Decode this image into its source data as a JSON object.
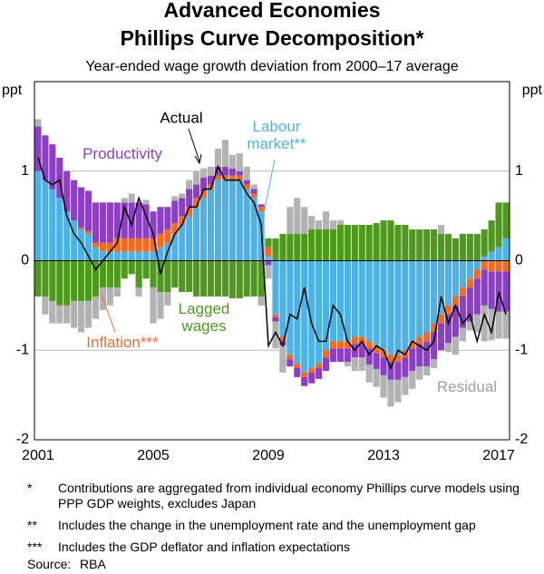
{
  "chart_data": {
    "type": "bar",
    "title": [
      "Advanced Economies",
      "Phillips Curve Decomposition*"
    ],
    "subtitle": "Year-ended wage growth deviation from 2000–17 average",
    "ylabel": "ppt",
    "y2label": "ppt",
    "categories": [
      "2001",
      null,
      null,
      null,
      null,
      null,
      null,
      null,
      null,
      null,
      null,
      null,
      null,
      null,
      null,
      null,
      "2005",
      null,
      null,
      null,
      null,
      null,
      null,
      null,
      null,
      null,
      null,
      null,
      null,
      null,
      null,
      null,
      "2009",
      null,
      null,
      null,
      null,
      null,
      null,
      null,
      null,
      null,
      null,
      null,
      null,
      null,
      null,
      null,
      "2013",
      null,
      null,
      null,
      null,
      null,
      null,
      null,
      null,
      null,
      null,
      null,
      null,
      null,
      null,
      null,
      "2017",
      null
    ],
    "ylim": [
      -2,
      2
    ],
    "yticks": [
      -2,
      -1,
      0,
      1
    ],
    "y2lim": [
      -2,
      2
    ],
    "y2ticks": [
      -2,
      -1,
      0,
      1
    ],
    "grid": true,
    "stacked": true,
    "series": [
      {
        "name": "Labour market**",
        "color": "#4db3e6",
        "values": [
          1.0,
          0.9,
          0.8,
          0.7,
          0.55,
          0.45,
          0.35,
          0.3,
          0.15,
          0.1,
          0.1,
          0.1,
          0.1,
          0.1,
          0.1,
          0.1,
          0.1,
          0.15,
          0.2,
          0.3,
          0.4,
          0.5,
          0.6,
          0.7,
          0.8,
          0.9,
          0.9,
          0.9,
          0.9,
          0.8,
          0.7,
          0.55,
          0.05,
          -0.6,
          -0.85,
          -1.05,
          -1.15,
          -1.25,
          -1.2,
          -1.15,
          -1.0,
          -0.9,
          -0.9,
          -0.9,
          -0.85,
          -0.85,
          -0.9,
          -0.95,
          -1.0,
          -1.05,
          -1.05,
          -1.0,
          -0.9,
          -0.85,
          -0.8,
          -0.7,
          -0.6,
          -0.5,
          -0.4,
          -0.3,
          -0.2,
          -0.1,
          0.05,
          0.1,
          0.15,
          0.25
        ]
      },
      {
        "name": "Inflation***",
        "color": "#f26b21",
        "values": [
          0,
          0,
          0,
          0,
          0,
          0,
          0.02,
          0.03,
          0.05,
          0.1,
          0.1,
          0.15,
          0.15,
          0.15,
          0.15,
          0.15,
          0.15,
          0.15,
          0.15,
          0.12,
          0.1,
          0.1,
          0.1,
          0.08,
          0.05,
          0.05,
          0.05,
          0.05,
          0.05,
          0.05,
          0.05,
          0.05,
          0.1,
          -0.03,
          -0.05,
          -0.05,
          -0.05,
          -0.05,
          -0.05,
          -0.05,
          -0.08,
          -0.08,
          -0.08,
          -0.08,
          -0.08,
          -0.08,
          -0.08,
          -0.08,
          -0.08,
          -0.08,
          -0.08,
          -0.08,
          -0.08,
          -0.08,
          -0.1,
          -0.1,
          -0.1,
          -0.1,
          -0.1,
          -0.1,
          -0.1,
          -0.1,
          -0.1,
          -0.12,
          -0.12,
          -0.12
        ]
      },
      {
        "name": "Productivity",
        "color": "#8c3fc4",
        "values": [
          0.5,
          0.5,
          0.5,
          0.45,
          0.45,
          0.45,
          0.45,
          0.45,
          0.45,
          0.45,
          0.45,
          0.4,
          0.4,
          0.4,
          0.4,
          0.38,
          0.3,
          0.3,
          0.25,
          0.25,
          0.2,
          0.2,
          0.15,
          0.15,
          0.1,
          0.1,
          0.1,
          0.08,
          0.05,
          0.05,
          0.05,
          0.03,
          -0.05,
          -0.05,
          -0.05,
          -0.08,
          -0.1,
          -0.1,
          -0.12,
          -0.12,
          -0.15,
          -0.15,
          -0.15,
          -0.15,
          -0.15,
          -0.15,
          -0.18,
          -0.18,
          -0.2,
          -0.2,
          -0.2,
          -0.22,
          -0.25,
          -0.25,
          -0.28,
          -0.3,
          -0.3,
          -0.32,
          -0.35,
          -0.35,
          -0.38,
          -0.4,
          -0.4,
          -0.42,
          -0.45,
          -0.45
        ]
      },
      {
        "name": "Lagged wages",
        "color": "#4f9a1e",
        "values": [
          -0.4,
          -0.4,
          -0.45,
          -0.5,
          -0.5,
          -0.45,
          -0.45,
          -0.45,
          -0.4,
          -0.3,
          -0.3,
          -0.3,
          -0.2,
          -0.15,
          -0.3,
          -0.2,
          -0.3,
          -0.35,
          -0.35,
          -0.3,
          -0.35,
          -0.35,
          -0.4,
          -0.4,
          -0.4,
          -0.4,
          -0.4,
          -0.42,
          -0.42,
          -0.4,
          -0.4,
          -0.4,
          0.1,
          0.25,
          0.3,
          0.3,
          0.3,
          0.3,
          0.35,
          0.35,
          0.35,
          0.35,
          0.4,
          0.4,
          0.4,
          0.4,
          0.4,
          0.42,
          0.45,
          0.45,
          0.4,
          0.4,
          0.35,
          0.35,
          0.35,
          0.35,
          0.3,
          0.3,
          0.25,
          0.3,
          0.3,
          0.3,
          0.3,
          0.35,
          0.5,
          0.4
        ]
      },
      {
        "name": "Residual",
        "color": "#b3b3b3",
        "values": [
          0.08,
          -0.2,
          -0.25,
          -0.2,
          -0.2,
          -0.3,
          -0.35,
          -0.3,
          -0.25,
          -0.25,
          -0.2,
          -0.1,
          0.05,
          0.1,
          -0.1,
          0.05,
          -0.4,
          -0.3,
          -0.15,
          0.05,
          0.05,
          0.1,
          0.15,
          0.1,
          0.1,
          0.2,
          0.3,
          0.15,
          0.2,
          0.15,
          0.05,
          -0.1,
          -0.15,
          -0.3,
          -0.3,
          0.3,
          0.4,
          0.3,
          0.15,
          0.1,
          0.2,
          0.1,
          0.05,
          -0.05,
          -0.15,
          -0.15,
          -0.2,
          -0.2,
          -0.25,
          -0.3,
          -0.25,
          -0.2,
          -0.2,
          -0.15,
          -0.1,
          -0.1,
          0.1,
          -0.1,
          -0.2,
          -0.15,
          -0.1,
          -0.2,
          -0.4,
          -0.35,
          -0.3,
          -0.3
        ]
      },
      {
        "name": "Actual",
        "color": "#000000",
        "mark": "line",
        "values": [
          1.15,
          0.9,
          0.85,
          0.9,
          0.5,
          0.3,
          0.2,
          0.05,
          -0.1,
          0.0,
          0.1,
          0.2,
          0.6,
          0.4,
          0.7,
          0.5,
          0.3,
          -0.15,
          0.1,
          0.3,
          0.4,
          0.6,
          0.6,
          0.8,
          0.8,
          1.05,
          0.9,
          0.9,
          0.9,
          0.75,
          0.65,
          0.4,
          -0.95,
          -0.8,
          -0.95,
          -0.6,
          -0.65,
          -0.3,
          -0.7,
          -0.9,
          -0.9,
          -0.5,
          -0.6,
          -0.9,
          -1.0,
          -0.9,
          -1.05,
          -0.95,
          -1.0,
          -1.2,
          -1.0,
          -1.05,
          -0.9,
          -0.95,
          -1.0,
          -0.9,
          -0.4,
          -0.7,
          -0.5,
          -0.7,
          -0.6,
          -0.9,
          -0.6,
          -0.8,
          -0.35,
          -0.6
        ]
      }
    ]
  },
  "notes": [
    {
      "symbol": "*",
      "text": "Contributions are aggregated from individual economy Phillips curve models using PPP GDP weights, excludes Japan"
    },
    {
      "symbol": "**",
      "text": "Includes the change in the unemployment rate and the unemployment gap"
    },
    {
      "symbol": "***",
      "text": "Includes the GDP deflator and inflation expectations"
    }
  ],
  "source": {
    "label": "Source:",
    "text": "RBA"
  }
}
